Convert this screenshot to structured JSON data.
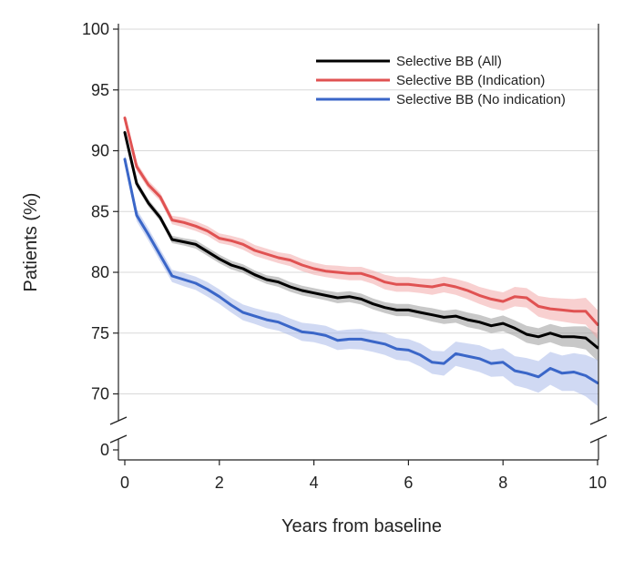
{
  "chart_data": {
    "type": "line",
    "title": "",
    "xlabel": "Years from baseline",
    "ylabel": "Patients (%)",
    "xlim": [
      0,
      10
    ],
    "ylim": [
      0,
      100
    ],
    "axis_break": "between 0 and 70",
    "y_ticks": [
      0,
      70,
      75,
      80,
      85,
      90,
      95,
      100
    ],
    "x_ticks": [
      0,
      2,
      4,
      6,
      8,
      10
    ],
    "grid": "horizontal",
    "legend_position": "top-right",
    "x": [
      0,
      0.25,
      0.5,
      0.75,
      1,
      1.25,
      1.5,
      1.75,
      2,
      2.25,
      2.5,
      2.75,
      3,
      3.25,
      3.5,
      3.75,
      4,
      4.25,
      4.5,
      4.75,
      5,
      5.25,
      5.5,
      5.75,
      6,
      6.25,
      6.5,
      6.75,
      7,
      7.25,
      7.5,
      7.75,
      8,
      8.25,
      8.5,
      8.75,
      9,
      9.25,
      9.5,
      9.75,
      10
    ],
    "series": [
      {
        "name": "Selective BB (All)",
        "color": "#000000",
        "band_color": "#9a9a9a",
        "values": [
          91.5,
          87.3,
          85.7,
          84.5,
          82.7,
          82.5,
          82.3,
          81.7,
          81.1,
          80.6,
          80.3,
          79.8,
          79.4,
          79.2,
          78.8,
          78.5,
          78.3,
          78.1,
          77.9,
          78.0,
          77.8,
          77.4,
          77.1,
          76.9,
          76.9,
          76.7,
          76.5,
          76.3,
          76.4,
          76.1,
          75.9,
          75.6,
          75.8,
          75.4,
          74.9,
          74.7,
          75.0,
          74.7,
          74.7,
          74.6,
          73.8
        ],
        "band_halfwidth": [
          0.25,
          0.3,
          0.3,
          0.3,
          0.3,
          0.3,
          0.35,
          0.35,
          0.35,
          0.35,
          0.35,
          0.35,
          0.35,
          0.4,
          0.4,
          0.4,
          0.4,
          0.4,
          0.45,
          0.45,
          0.45,
          0.45,
          0.45,
          0.5,
          0.5,
          0.5,
          0.55,
          0.55,
          0.55,
          0.6,
          0.6,
          0.6,
          0.65,
          0.65,
          0.7,
          0.7,
          0.75,
          0.8,
          0.85,
          0.95,
          1.1
        ]
      },
      {
        "name": "Selective BB (Indication)",
        "color": "#e05252",
        "band_color": "#f3aaaa",
        "values": [
          92.7,
          88.7,
          87.2,
          86.2,
          84.3,
          84.1,
          83.8,
          83.4,
          82.8,
          82.6,
          82.3,
          81.8,
          81.5,
          81.2,
          81.0,
          80.6,
          80.3,
          80.1,
          80.0,
          79.9,
          79.9,
          79.6,
          79.2,
          79.0,
          79.0,
          78.9,
          78.8,
          79.0,
          78.8,
          78.5,
          78.1,
          77.8,
          77.6,
          78.0,
          77.9,
          77.2,
          77.0,
          76.9,
          76.8,
          76.8,
          75.7
        ],
        "band_halfwidth": [
          0.3,
          0.35,
          0.35,
          0.35,
          0.35,
          0.4,
          0.4,
          0.4,
          0.4,
          0.4,
          0.45,
          0.45,
          0.45,
          0.45,
          0.5,
          0.5,
          0.5,
          0.5,
          0.55,
          0.55,
          0.55,
          0.55,
          0.6,
          0.6,
          0.6,
          0.6,
          0.65,
          0.65,
          0.65,
          0.7,
          0.7,
          0.75,
          0.75,
          0.8,
          0.8,
          0.85,
          0.9,
          0.95,
          1.0,
          1.1,
          1.2
        ]
      },
      {
        "name": "Selective BB (No indication)",
        "color": "#3a66c8",
        "band_color": "#aab9ea",
        "values": [
          89.3,
          84.7,
          83.1,
          81.4,
          79.7,
          79.4,
          79.1,
          78.6,
          78.0,
          77.3,
          76.7,
          76.4,
          76.1,
          75.9,
          75.5,
          75.1,
          75.0,
          74.8,
          74.4,
          74.5,
          74.5,
          74.3,
          74.1,
          73.7,
          73.6,
          73.2,
          72.6,
          72.5,
          73.3,
          73.1,
          72.9,
          72.5,
          72.6,
          71.9,
          71.7,
          71.4,
          72.1,
          71.7,
          71.8,
          71.5,
          70.9
        ],
        "band_halfwidth": [
          0.4,
          0.5,
          0.5,
          0.5,
          0.5,
          0.55,
          0.55,
          0.6,
          0.6,
          0.6,
          0.65,
          0.65,
          0.7,
          0.7,
          0.7,
          0.75,
          0.75,
          0.8,
          0.8,
          0.8,
          0.85,
          0.85,
          0.9,
          0.9,
          0.9,
          0.95,
          0.95,
          1.0,
          1.0,
          1.05,
          1.1,
          1.1,
          1.15,
          1.2,
          1.25,
          1.3,
          1.35,
          1.45,
          1.55,
          1.7,
          1.9
        ]
      }
    ]
  }
}
